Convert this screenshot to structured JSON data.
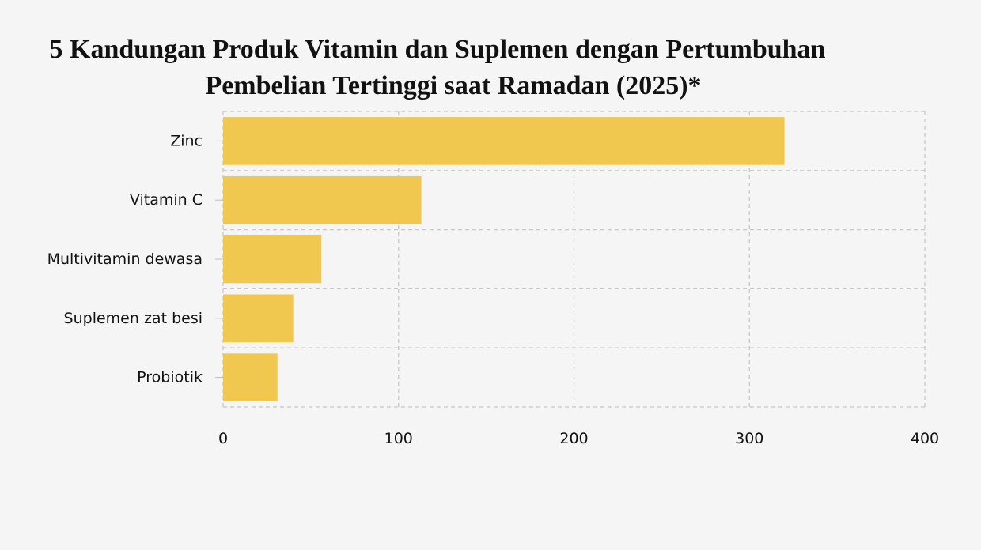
{
  "chart_data": {
    "type": "bar",
    "orientation": "horizontal",
    "title_line1": "5 Kandungan Produk Vitamin dan Suplemen dengan Pertumbuhan",
    "title_line2": "Pembelian Tertinggi saat Ramadan (2025)*",
    "xlabel": "",
    "ylabel": "",
    "categories": [
      "Zinc",
      "Vitamin C",
      "Multivitamin dewasa",
      "Suplemen zat besi",
      "Probiotik"
    ],
    "values": [
      320,
      113,
      56,
      40,
      31
    ],
    "xlim": [
      0,
      400
    ],
    "xticks": [
      0,
      100,
      200,
      300,
      400
    ],
    "xtick_labels": [
      "0",
      "100",
      "200",
      "300",
      "400"
    ],
    "grid": true,
    "legend": "none",
    "bar_color": "#f0c850"
  }
}
